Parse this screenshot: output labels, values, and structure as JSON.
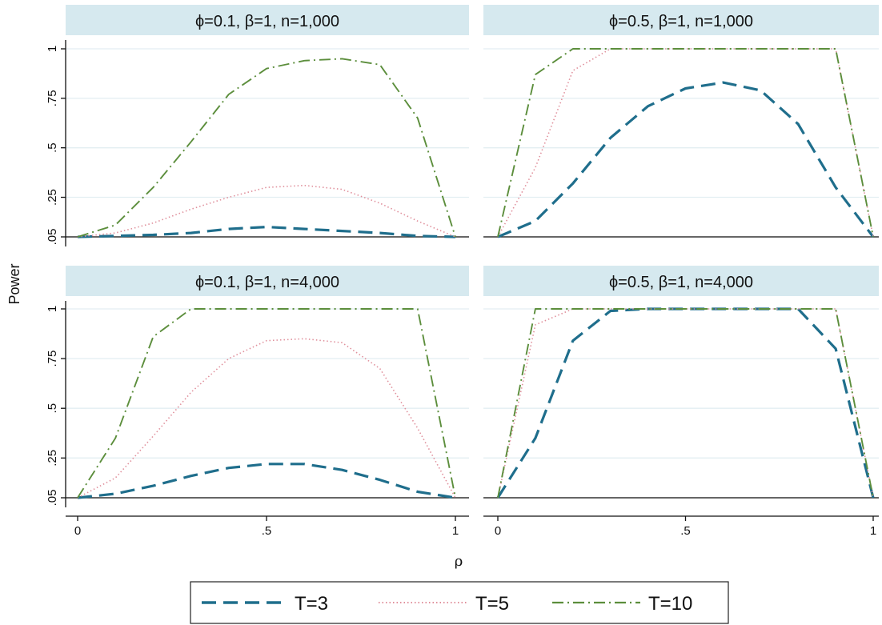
{
  "chart_data": {
    "type": "line",
    "ylabel": "Power",
    "xlabel": "ρ",
    "xlim": [
      0,
      1
    ],
    "ylim": [
      0.05,
      1
    ],
    "x_ticks": [
      0,
      0.5,
      1
    ],
    "x_tick_labels": [
      "0",
      ".5",
      "1"
    ],
    "y_ticks": [
      0.05,
      0.25,
      0.5,
      0.75,
      1
    ],
    "y_tick_labels": [
      ".05",
      ".25",
      ".5",
      ".75",
      "1"
    ],
    "grid": true,
    "legend_position": "bottom",
    "colors": {
      "T=3": "#1f6e8c",
      "T=5": "#e0909c",
      "T=10": "#5c8e3c",
      "panel_header": "#d6e9ef",
      "grid": "#e3eef2"
    },
    "panels": [
      {
        "title": "ϕ=0.1, β=1, n=1,000",
        "series": [
          {
            "name": "T=3",
            "x": [
              0,
              0.1,
              0.2,
              0.3,
              0.4,
              0.5,
              0.6,
              0.7,
              0.8,
              0.9,
              1.0
            ],
            "y": [
              0.05,
              0.055,
              0.06,
              0.07,
              0.09,
              0.1,
              0.09,
              0.08,
              0.07,
              0.055,
              0.05
            ]
          },
          {
            "name": "T=5",
            "x": [
              0,
              0.1,
              0.2,
              0.3,
              0.4,
              0.5,
              0.6,
              0.7,
              0.8,
              0.9,
              1.0
            ],
            "y": [
              0.05,
              0.07,
              0.12,
              0.19,
              0.25,
              0.3,
              0.31,
              0.29,
              0.22,
              0.13,
              0.05
            ]
          },
          {
            "name": "T=10",
            "x": [
              0,
              0.1,
              0.2,
              0.3,
              0.4,
              0.5,
              0.6,
              0.7,
              0.8,
              0.9,
              1.0
            ],
            "y": [
              0.05,
              0.11,
              0.3,
              0.53,
              0.77,
              0.9,
              0.94,
              0.95,
              0.92,
              0.65,
              0.05
            ]
          }
        ]
      },
      {
        "title": "ϕ=0.5, β=1, n=1,000",
        "series": [
          {
            "name": "T=3",
            "x": [
              0,
              0.1,
              0.2,
              0.3,
              0.4,
              0.5,
              0.6,
              0.7,
              0.8,
              0.9,
              1.0
            ],
            "y": [
              0.05,
              0.13,
              0.32,
              0.55,
              0.71,
              0.8,
              0.83,
              0.79,
              0.62,
              0.3,
              0.05
            ]
          },
          {
            "name": "T=5",
            "x": [
              0,
              0.1,
              0.2,
              0.3,
              0.4,
              0.5,
              0.6,
              0.7,
              0.8,
              0.9,
              1.0
            ],
            "y": [
              0.05,
              0.4,
              0.89,
              1,
              1,
              1,
              1,
              1,
              1,
              1,
              0.05
            ]
          },
          {
            "name": "T=10",
            "x": [
              0,
              0.1,
              0.2,
              0.3,
              0.4,
              0.5,
              0.6,
              0.7,
              0.8,
              0.9,
              1.0
            ],
            "y": [
              0.05,
              0.87,
              1,
              1,
              1,
              1,
              1,
              1,
              1,
              1,
              0.05
            ]
          }
        ]
      },
      {
        "title": "ϕ=0.1, β=1, n=4,000",
        "series": [
          {
            "name": "T=3",
            "x": [
              0,
              0.1,
              0.2,
              0.3,
              0.4,
              0.5,
              0.6,
              0.7,
              0.8,
              0.9,
              1.0
            ],
            "y": [
              0.05,
              0.07,
              0.11,
              0.16,
              0.2,
              0.22,
              0.22,
              0.19,
              0.14,
              0.08,
              0.05
            ]
          },
          {
            "name": "T=5",
            "x": [
              0,
              0.1,
              0.2,
              0.3,
              0.4,
              0.5,
              0.6,
              0.7,
              0.8,
              0.9,
              1.0
            ],
            "y": [
              0.05,
              0.15,
              0.36,
              0.58,
              0.75,
              0.84,
              0.85,
              0.83,
              0.7,
              0.4,
              0.05
            ]
          },
          {
            "name": "T=10",
            "x": [
              0,
              0.1,
              0.2,
              0.3,
              0.4,
              0.5,
              0.6,
              0.7,
              0.8,
              0.9,
              1.0
            ],
            "y": [
              0.05,
              0.35,
              0.86,
              1,
              1,
              1,
              1,
              1,
              1,
              1,
              0.05
            ]
          }
        ]
      },
      {
        "title": "ϕ=0.5, β=1, n=4,000",
        "series": [
          {
            "name": "T=3",
            "x": [
              0,
              0.1,
              0.2,
              0.3,
              0.4,
              0.5,
              0.6,
              0.7,
              0.8,
              0.9,
              1.0
            ],
            "y": [
              0.05,
              0.35,
              0.84,
              0.99,
              1,
              1,
              1,
              1,
              1,
              0.8,
              0.05
            ]
          },
          {
            "name": "T=5",
            "x": [
              0,
              0.1,
              0.2,
              0.3,
              0.4,
              0.5,
              0.6,
              0.7,
              0.8,
              0.9,
              1.0
            ],
            "y": [
              0.05,
              0.92,
              1,
              1,
              1,
              1,
              1,
              1,
              1,
              1,
              0.05
            ]
          },
          {
            "name": "T=10",
            "x": [
              0,
              0.1,
              0.2,
              0.3,
              0.4,
              0.5,
              0.6,
              0.7,
              0.8,
              0.9,
              1.0
            ],
            "y": [
              0.05,
              1,
              1,
              1,
              1,
              1,
              1,
              1,
              1,
              1,
              0.05
            ]
          }
        ]
      }
    ]
  },
  "legend": {
    "items": [
      {
        "label": "T=3",
        "color": "#1f6e8c",
        "dash": "long-dash"
      },
      {
        "label": "T=5",
        "color": "#e0909c",
        "dash": "dotted"
      },
      {
        "label": "T=10",
        "color": "#5c8e3c",
        "dash": "dash-dot"
      }
    ]
  }
}
